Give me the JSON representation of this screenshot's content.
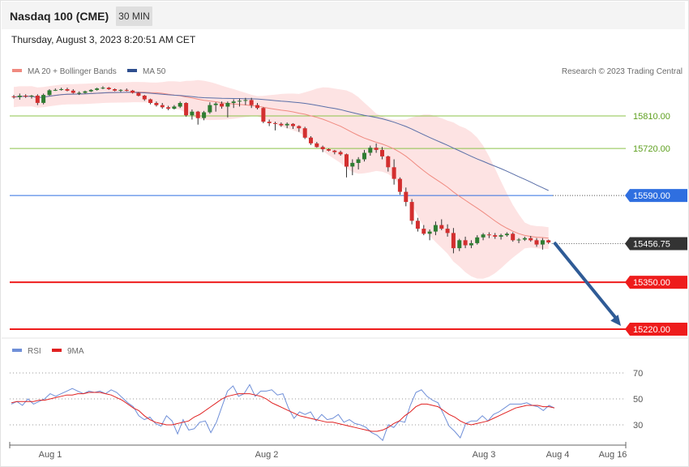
{
  "header": {
    "title": "Nasdaq 100 (CME)",
    "timeframe": "30 MIN"
  },
  "datetime": "Thursday, August 3, 2023 8:20:51 AM CET",
  "legend": {
    "ma20_bb": "MA 20 + Bollinger Bands",
    "ma50": "MA 50",
    "credit": "Research © 2023 Trading Central"
  },
  "rsi_legend": {
    "rsi": "RSI",
    "ma": "9MA"
  },
  "colors": {
    "up": "#2e7d32",
    "down": "#d32f2f",
    "band": "#fde3e3",
    "ma20": "#f08a80",
    "ma50": "#5a6fa8",
    "green_level": "#8bc34a",
    "blue_level": "#2f6fe0",
    "red_level": "#ee1c1c",
    "last": "#333333",
    "arrow": "#2f5b96",
    "rsi": "#6f8fd8",
    "rsi_ma": "#e02020"
  },
  "chart_data": {
    "type": "candlestick",
    "price_axis": {
      "min": 15180,
      "max": 15880
    },
    "x_labels": [
      "Aug 1",
      "Aug 2",
      "Aug 3",
      "Aug 4",
      "Aug 16"
    ],
    "levels": [
      {
        "name": "resistance",
        "value": 15810,
        "label": "15810.00",
        "style": "green"
      },
      {
        "name": "resistance",
        "value": 15720,
        "label": "15720.00",
        "style": "green"
      },
      {
        "name": "pivot",
        "value": 15590,
        "label": "15590.00",
        "style": "blue"
      },
      {
        "name": "last",
        "value": 15456.75,
        "label": "15456.75",
        "style": "last"
      },
      {
        "name": "target",
        "value": 15350,
        "label": "15350.00",
        "style": "red"
      },
      {
        "name": "target",
        "value": 15220,
        "label": "15220.00",
        "style": "red"
      }
    ],
    "candles": [
      [
        15864,
        15868,
        15858,
        15862
      ],
      [
        15862,
        15872,
        15855,
        15866
      ],
      [
        15866,
        15870,
        15860,
        15864
      ],
      [
        15864,
        15868,
        15858,
        15866
      ],
      [
        15866,
        15870,
        15840,
        15846
      ],
      [
        15846,
        15872,
        15842,
        15868
      ],
      [
        15868,
        15884,
        15866,
        15881
      ],
      [
        15881,
        15886,
        15879,
        15882
      ],
      [
        15882,
        15888,
        15880,
        15884
      ],
      [
        15884,
        15888,
        15878,
        15880
      ],
      [
        15880,
        15884,
        15872,
        15874
      ],
      [
        15874,
        15878,
        15868,
        15874
      ],
      [
        15874,
        15880,
        15872,
        15878
      ],
      [
        15878,
        15884,
        15876,
        15882
      ],
      [
        15882,
        15888,
        15880,
        15886
      ],
      [
        15886,
        15892,
        15884,
        15888
      ],
      [
        15888,
        15890,
        15882,
        15884
      ],
      [
        15884,
        15886,
        15878,
        15880
      ],
      [
        15880,
        15884,
        15876,
        15882
      ],
      [
        15882,
        15886,
        15878,
        15880
      ],
      [
        15880,
        15882,
        15872,
        15874
      ],
      [
        15874,
        15876,
        15864,
        15866
      ],
      [
        15866,
        15868,
        15852,
        15856
      ],
      [
        15856,
        15858,
        15842,
        15846
      ],
      [
        15846,
        15850,
        15836,
        15840
      ],
      [
        15840,
        15846,
        15830,
        15834
      ],
      [
        15834,
        15838,
        15826,
        15830
      ],
      [
        15830,
        15840,
        15828,
        15836
      ],
      [
        15836,
        15850,
        15832,
        15846
      ],
      [
        15846,
        15848,
        15808,
        15812
      ],
      [
        15812,
        15828,
        15800,
        15822
      ],
      [
        15822,
        15824,
        15786,
        15804
      ],
      [
        15804,
        15824,
        15798,
        15820
      ],
      [
        15820,
        15848,
        15816,
        15840
      ],
      [
        15840,
        15848,
        15822,
        15844
      ],
      [
        15844,
        15850,
        15830,
        15836
      ],
      [
        15836,
        15850,
        15806,
        15846
      ],
      [
        15846,
        15856,
        15832,
        15850
      ],
      [
        15850,
        15858,
        15836,
        15852
      ],
      [
        15852,
        15860,
        15840,
        15854
      ],
      [
        15854,
        15860,
        15832,
        15840
      ],
      [
        15840,
        15846,
        15828,
        15832
      ],
      [
        15832,
        15834,
        15790,
        15794
      ],
      [
        15794,
        15800,
        15782,
        15790
      ],
      [
        15790,
        15794,
        15770,
        15788
      ],
      [
        15788,
        15792,
        15780,
        15784
      ],
      [
        15784,
        15792,
        15776,
        15788
      ],
      [
        15788,
        15790,
        15774,
        15782
      ],
      [
        15782,
        15784,
        15766,
        15776
      ],
      [
        15776,
        15780,
        15746,
        15750
      ],
      [
        15750,
        15754,
        15730,
        15734
      ],
      [
        15734,
        15738,
        15722,
        15724
      ],
      [
        15724,
        15728,
        15710,
        15718
      ],
      [
        15718,
        15720,
        15712,
        15714
      ],
      [
        15714,
        15716,
        15704,
        15710
      ],
      [
        15710,
        15714,
        15700,
        15704
      ],
      [
        15704,
        15706,
        15640,
        15670
      ],
      [
        15670,
        15690,
        15646,
        15680
      ],
      [
        15680,
        15696,
        15662,
        15690
      ],
      [
        15690,
        15716,
        15684,
        15708
      ],
      [
        15708,
        15728,
        15700,
        15722
      ],
      [
        15722,
        15734,
        15708,
        15716
      ],
      [
        15716,
        15724,
        15690,
        15698
      ],
      [
        15698,
        15700,
        15656,
        15668
      ],
      [
        15668,
        15690,
        15620,
        15636
      ],
      [
        15636,
        15640,
        15592,
        15600
      ],
      [
        15600,
        15612,
        15560,
        15572
      ],
      [
        15572,
        15580,
        15510,
        15520
      ],
      [
        15520,
        15528,
        15490,
        15498
      ],
      [
        15498,
        15508,
        15480,
        15484
      ],
      [
        15484,
        15496,
        15466,
        15490
      ],
      [
        15490,
        15518,
        15480,
        15508
      ],
      [
        15508,
        15524,
        15494,
        15498
      ],
      [
        15498,
        15510,
        15476,
        15486
      ],
      [
        15486,
        15500,
        15430,
        15444
      ],
      [
        15444,
        15470,
        15436,
        15466
      ],
      [
        15466,
        15476,
        15444,
        15452
      ],
      [
        15452,
        15466,
        15444,
        15458
      ],
      [
        15458,
        15480,
        15454,
        15474
      ],
      [
        15474,
        15486,
        15466,
        15482
      ],
      [
        15482,
        15488,
        15472,
        15480
      ],
      [
        15480,
        15486,
        15470,
        15476
      ],
      [
        15476,
        15484,
        15468,
        15480
      ],
      [
        15480,
        15488,
        15476,
        15484
      ],
      [
        15484,
        15488,
        15462,
        15466
      ],
      [
        15466,
        15472,
        15458,
        15468
      ],
      [
        15468,
        15476,
        15464,
        15472
      ],
      [
        15472,
        15478,
        15462,
        15466
      ],
      [
        15466,
        15472,
        15448,
        15454
      ],
      [
        15454,
        15472,
        15440,
        15466
      ],
      [
        15466,
        15468,
        15456,
        15460
      ]
    ],
    "rsi": [
      46,
      48,
      45,
      50,
      46,
      48,
      50,
      54,
      52,
      54,
      56,
      58,
      56,
      54,
      56,
      55,
      56,
      54,
      57,
      55,
      51,
      47,
      44,
      37,
      34,
      36,
      31,
      29,
      37,
      33,
      23,
      34,
      26,
      27,
      32,
      33,
      24,
      32,
      44,
      56,
      60,
      52,
      54,
      61,
      52,
      56,
      56,
      57,
      53,
      54,
      43,
      35,
      40,
      38,
      40,
      33,
      38,
      34,
      35,
      38,
      32,
      34,
      31,
      30,
      28,
      24,
      22,
      18,
      30,
      28,
      33,
      32,
      45,
      55,
      57,
      52,
      49,
      47,
      38,
      29,
      25,
      20,
      31,
      33,
      33,
      37,
      33,
      38,
      40,
      43,
      46,
      46,
      46,
      47,
      45,
      44,
      41,
      45,
      43
    ],
    "rsi_ma": [
      47,
      48,
      48,
      48,
      48,
      49,
      49,
      50,
      51,
      52,
      53,
      53,
      54,
      54,
      55,
      55,
      55,
      54,
      53,
      51,
      49,
      46,
      43,
      41,
      37,
      34,
      32,
      31,
      30,
      30,
      31,
      32,
      33,
      36,
      38,
      41,
      44,
      47,
      50,
      52,
      53,
      54,
      54,
      54,
      53,
      52,
      50,
      47,
      45,
      43,
      41,
      39,
      37,
      36,
      35,
      34,
      33,
      32,
      32,
      31,
      30,
      29,
      28,
      27,
      26,
      25,
      25,
      26,
      28,
      31,
      33,
      37,
      40,
      44,
      46,
      46,
      45,
      44,
      41,
      38,
      36,
      33,
      31,
      30,
      31,
      32,
      33,
      35,
      37,
      39,
      41,
      43,
      44,
      45,
      45,
      45,
      44,
      44,
      43
    ],
    "rsi_axis": {
      "min": 10,
      "max": 90,
      "ticks": [
        70,
        50,
        30
      ]
    }
  }
}
